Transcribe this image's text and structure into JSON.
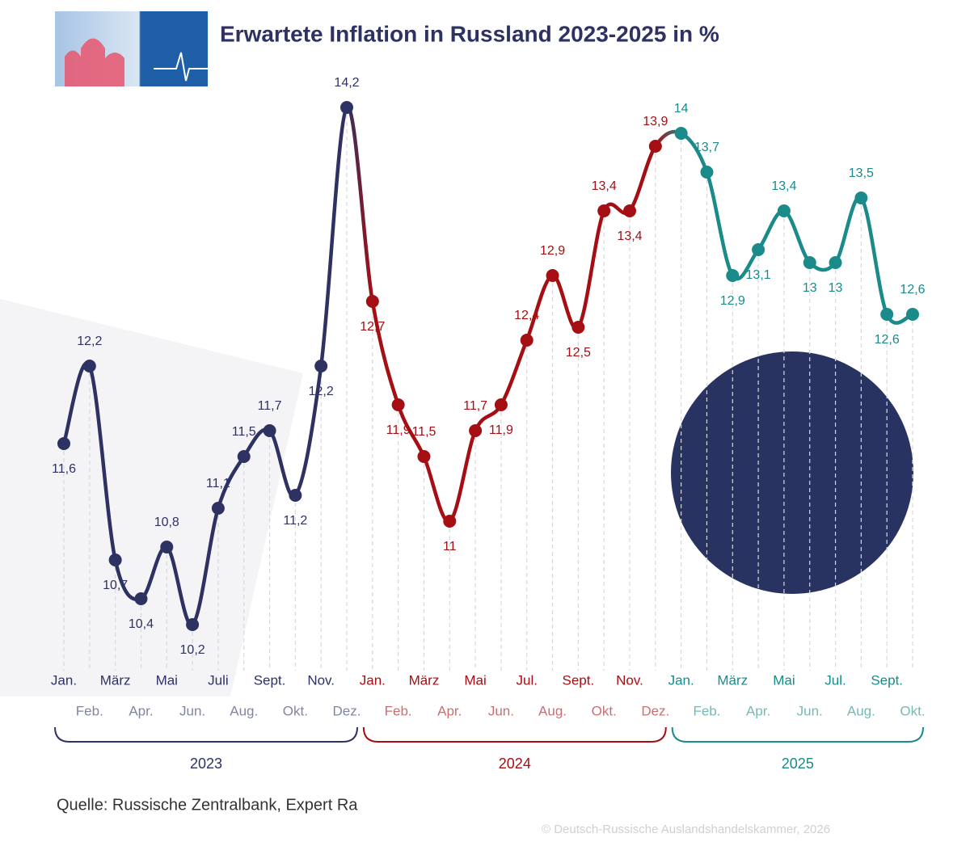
{
  "title": "Erwartete Inflation in Russland 2023-2025 in %",
  "chart_data": {
    "type": "line",
    "categories": [
      "Jan.",
      "Feb.",
      "März",
      "Apr.",
      "Mai",
      "Jun.",
      "Juli",
      "Aug.",
      "Sept.",
      "Okt.",
      "Nov.",
      "Dez.",
      "Jan.",
      "Feb.",
      "März",
      "Apr.",
      "Mai",
      "Jun.",
      "Jul.",
      "Aug.",
      "Sept.",
      "Okt.",
      "Nov.",
      "Dez.",
      "Jan.",
      "Feb.",
      "März",
      "Apr.",
      "Mai",
      "Jun.",
      "Jul.",
      "Aug.",
      "Sept.",
      "Okt."
    ],
    "series": [
      {
        "name": "2023",
        "color": "#2d3263",
        "values": [
          11.6,
          12.2,
          10.7,
          10.4,
          10.8,
          10.2,
          11.1,
          11.5,
          11.7,
          11.2,
          12.2,
          14.2,
          null,
          null,
          null,
          null,
          null,
          null,
          null,
          null,
          null,
          null,
          null,
          null,
          null,
          null,
          null,
          null,
          null,
          null,
          null,
          null,
          null,
          null
        ],
        "value_labels": [
          "11,6",
          "12,2",
          "10,7",
          "10,4",
          "10,8",
          "10,2",
          "11,1",
          "11,5",
          "11,7",
          "11,2",
          "12,2",
          "14,2",
          null,
          null,
          null,
          null,
          null,
          null,
          null,
          null,
          null,
          null,
          null,
          null,
          null,
          null,
          null,
          null,
          null,
          null,
          null,
          null,
          null,
          null
        ]
      },
      {
        "name": "2024",
        "color": "#a50f14",
        "values": [
          null,
          null,
          null,
          null,
          null,
          null,
          null,
          null,
          null,
          null,
          null,
          null,
          12.7,
          11.9,
          11.5,
          11,
          11.7,
          11.9,
          12.4,
          12.9,
          12.5,
          13.4,
          13.4,
          13.9,
          null,
          null,
          null,
          null,
          null,
          null,
          null,
          null,
          null,
          null
        ],
        "value_labels": [
          null,
          null,
          null,
          null,
          null,
          null,
          null,
          null,
          null,
          null,
          null,
          null,
          "12,7",
          "11,9",
          "11,5",
          "11",
          "11,7",
          "11,9",
          "12,4",
          "12,9",
          "12,5",
          "13,4",
          "13,4",
          "13,9",
          null,
          null,
          null,
          null,
          null,
          null,
          null,
          null,
          null,
          null
        ]
      },
      {
        "name": "2025",
        "color": "#1a8a8a",
        "values": [
          null,
          null,
          null,
          null,
          null,
          null,
          null,
          null,
          null,
          null,
          null,
          null,
          null,
          null,
          null,
          null,
          null,
          null,
          null,
          null,
          null,
          null,
          null,
          null,
          14,
          13.7,
          12.9,
          13.1,
          13.4,
          13,
          13,
          13.5,
          12.6,
          12.6
        ],
        "value_labels": [
          null,
          null,
          null,
          null,
          null,
          null,
          null,
          null,
          null,
          null,
          null,
          null,
          null,
          null,
          null,
          null,
          null,
          null,
          null,
          null,
          null,
          null,
          null,
          null,
          "14",
          "13,7",
          "12,9",
          "13,1",
          "13,4",
          "13",
          "13",
          "13,5",
          "12,6",
          "12,6"
        ]
      }
    ]
  },
  "source": "Quelle: Russische Zentralbank, Expert Ra",
  "copyright": "© Deutsch-Russische Auslandshandelskammer, 2026"
}
